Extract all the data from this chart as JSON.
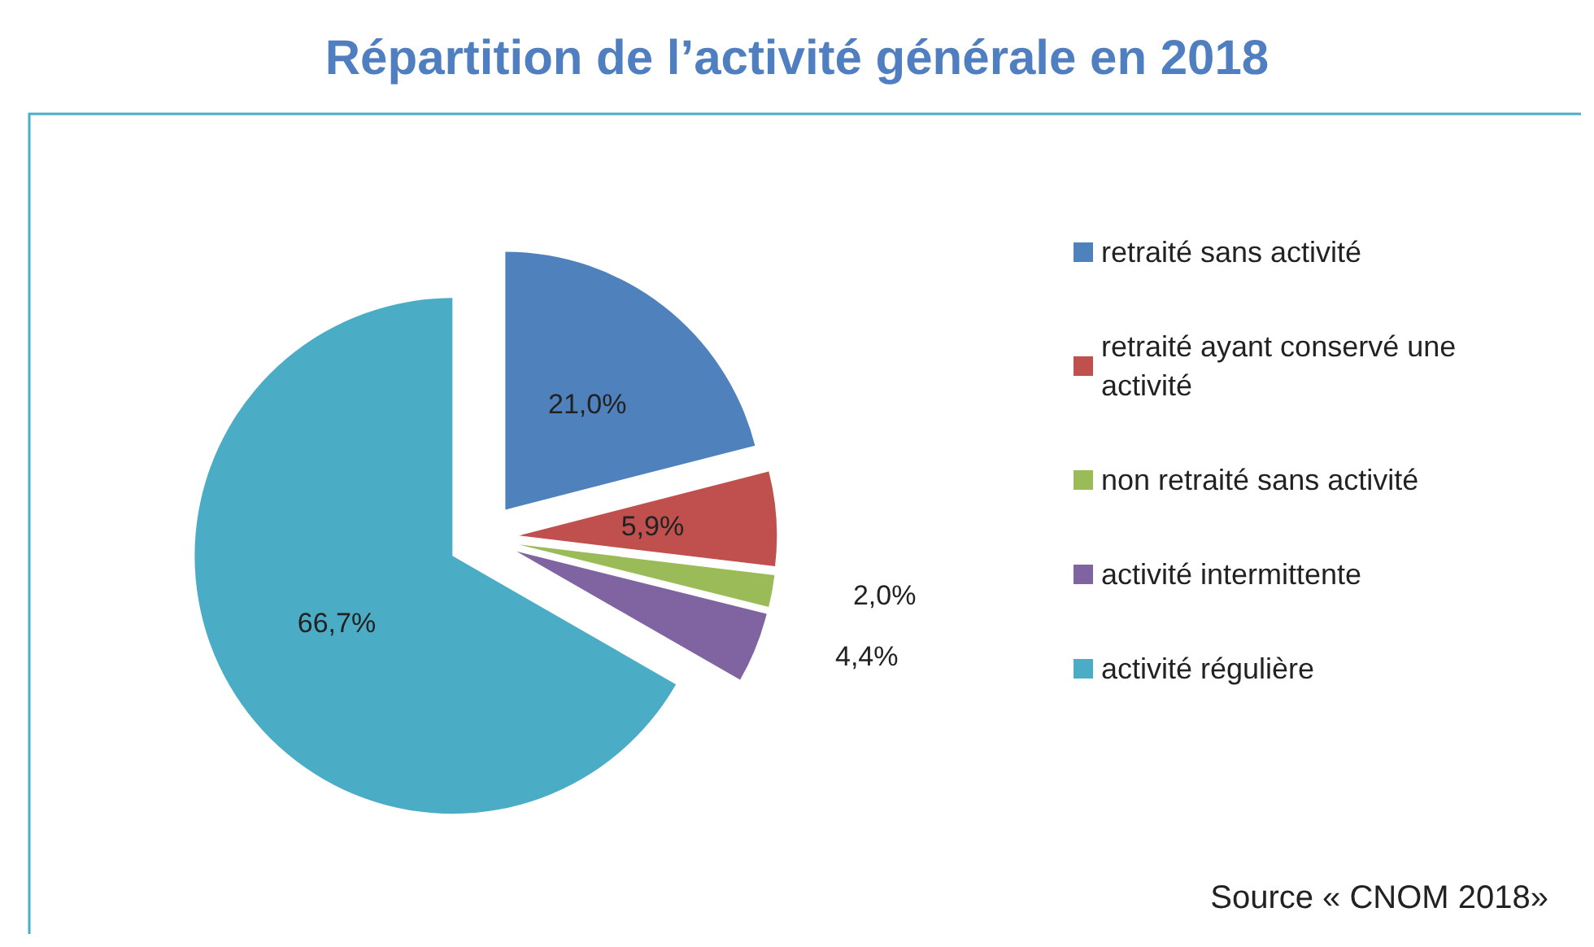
{
  "chart_data": {
    "type": "pie",
    "title": "Répartition de l’activité générale en 2018",
    "categories": [
      "retraité sans activité",
      "retraité ayant conservé une activité",
      "non retraité sans activité",
      "activité intermittente",
      "activité régulière"
    ],
    "values": [
      21.0,
      5.9,
      2.0,
      4.4,
      66.7
    ],
    "colors": [
      "#4f81bd",
      "#c0504d",
      "#9bbb59",
      "#8064a2",
      "#4bacc6"
    ],
    "value_labels": [
      "21,0%",
      "5,9%",
      "2,0%",
      "4,4%",
      "66,7%"
    ],
    "legend": "right",
    "annotations": [
      "Source « CNOM 2018»"
    ]
  }
}
